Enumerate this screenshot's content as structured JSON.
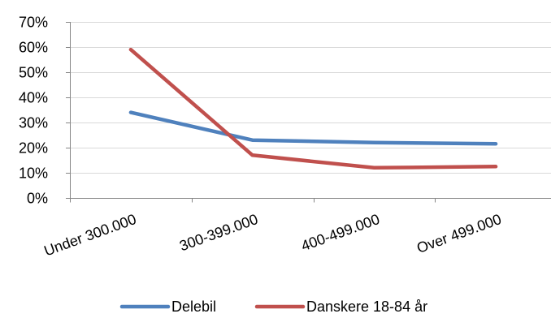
{
  "chart_data": {
    "type": "line",
    "categories": [
      "Under 300.000",
      "300-399.000",
      "400-499.000",
      "Over 499.000"
    ],
    "series": [
      {
        "name": "Delebil",
        "values": [
          34,
          23,
          22,
          21.5
        ],
        "color": "#4F81BD"
      },
      {
        "name": "Danskere 18-84 år",
        "values": [
          59,
          17,
          12,
          12.5
        ],
        "color": "#C0504D"
      }
    ],
    "ylim": [
      0,
      70
    ],
    "yticks": [
      0,
      10,
      20,
      30,
      40,
      50,
      60,
      70
    ],
    "ytick_labels": [
      "0%",
      "10%",
      "20%",
      "30%",
      "40%",
      "50%",
      "60%",
      "70%"
    ],
    "grid": true,
    "legend_position": "bottom"
  }
}
